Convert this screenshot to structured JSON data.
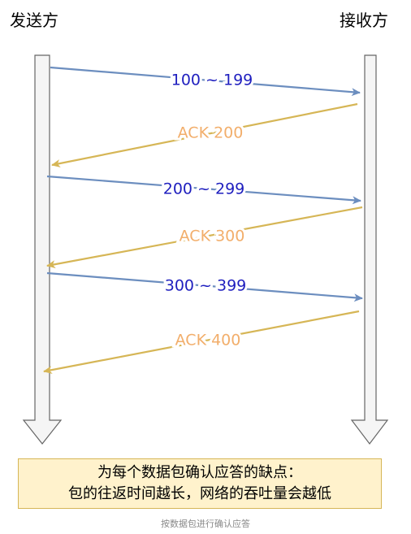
{
  "actors": {
    "sender": "发送方",
    "receiver": "接收方"
  },
  "messages": [
    {
      "label": "100 ~ 199",
      "direction": "send"
    },
    {
      "label": "ACK 200",
      "direction": "ack"
    },
    {
      "label": "200 ~ 299",
      "direction": "send"
    },
    {
      "label": "ACK 300",
      "direction": "ack"
    },
    {
      "label": "300 ~ 399",
      "direction": "send"
    },
    {
      "label": "ACK 400",
      "direction": "ack"
    }
  ],
  "colors": {
    "send_line": "#6c8ebf",
    "send_text": "#1f1fbf",
    "ack_line": "#d6b656",
    "ack_text": "#f2ae6b",
    "lifeline_fill": "#f5f5f5",
    "lifeline_stroke": "#666666",
    "note_fill": "#fff2cc",
    "note_stroke": "#d6b656"
  },
  "note": {
    "line1": "为每个数据包确认应答的缺点：",
    "line2": "包的往返时间越长，网络的吞吐量会越低"
  },
  "caption": "按数据包进行确认应答"
}
